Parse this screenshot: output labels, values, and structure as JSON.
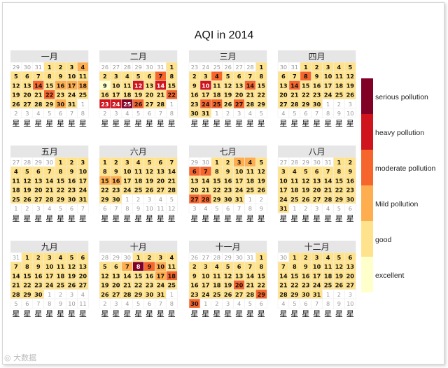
{
  "chart_data": {
    "type": "heatmap",
    "subtype": "calendar",
    "title": "AQI in 2014",
    "year": 2014,
    "month_labels": [
      "一月",
      "二月",
      "三月",
      "四月",
      "五月",
      "六月",
      "七月",
      "八月",
      "九月",
      "十月",
      "十一月",
      "十二月"
    ],
    "weekday_label": "星",
    "legend_position": "right",
    "legend_order_top_to_bottom": [
      "serious pollution",
      "heavy pollution",
      "moderate pollution",
      "Mild pollution",
      "good",
      "excellent"
    ],
    "levels": [
      {
        "level": 0,
        "label": "excellent",
        "color": "#FFFFCC"
      },
      {
        "level": 1,
        "label": "good",
        "color": "#FFE38C"
      },
      {
        "level": 2,
        "label": "Mild pollution",
        "color": "#FEAE4E"
      },
      {
        "level": 3,
        "label": "moderate pollution",
        "color": "#F5652C"
      },
      {
        "level": 4,
        "label": "heavy pollution",
        "color": "#D0141E"
      },
      {
        "level": 5,
        "label": "serious pollution",
        "color": "#800026"
      }
    ],
    "other_day_color": "#FFFFFF",
    "aqi_level_by_month": [
      [
        1,
        1,
        1,
        2,
        1,
        1,
        1,
        1,
        1,
        1,
        1,
        1,
        1,
        3,
        1,
        2,
        2,
        2,
        1,
        1,
        1,
        3,
        1,
        1,
        1,
        1,
        1,
        1,
        1,
        2,
        1
      ],
      [
        1,
        1,
        1,
        1,
        1,
        1,
        3,
        1,
        0,
        1,
        1,
        4,
        1,
        4,
        1,
        1,
        1,
        1,
        1,
        1,
        1,
        3,
        4,
        4,
        5,
        3,
        1,
        1
      ],
      [
        1,
        1,
        1,
        3,
        1,
        1,
        1,
        1,
        1,
        4,
        1,
        1,
        1,
        3,
        1,
        1,
        1,
        1,
        1,
        1,
        1,
        1,
        1,
        3,
        3,
        1,
        3,
        1,
        1,
        1,
        1
      ],
      [
        1,
        1,
        1,
        1,
        1,
        1,
        1,
        3,
        1,
        1,
        1,
        1,
        1,
        3,
        1,
        1,
        1,
        1,
        1,
        1,
        1,
        1,
        1,
        1,
        1,
        1,
        1,
        1,
        1,
        1
      ],
      [
        1,
        1,
        1,
        1,
        1,
        1,
        1,
        1,
        1,
        1,
        1,
        1,
        1,
        1,
        1,
        1,
        1,
        1,
        1,
        1,
        1,
        1,
        1,
        1,
        1,
        1,
        1,
        1,
        1,
        1,
        1
      ],
      [
        1,
        1,
        1,
        1,
        1,
        1,
        1,
        1,
        1,
        1,
        1,
        1,
        1,
        1,
        2,
        2,
        1,
        1,
        1,
        1,
        1,
        1,
        1,
        1,
        1,
        1,
        1,
        1,
        1,
        1
      ],
      [
        1,
        1,
        2,
        2,
        1,
        3,
        3,
        1,
        1,
        1,
        1,
        1,
        1,
        1,
        1,
        1,
        1,
        1,
        1,
        1,
        1,
        1,
        1,
        1,
        1,
        1,
        3,
        3,
        1,
        1,
        1
      ],
      [
        1,
        1,
        1,
        1,
        1,
        1,
        1,
        1,
        1,
        1,
        1,
        1,
        1,
        1,
        1,
        1,
        1,
        1,
        1,
        1,
        1,
        1,
        1,
        1,
        1,
        1,
        1,
        1,
        1,
        1,
        1
      ],
      [
        1,
        1,
        1,
        1,
        1,
        1,
        1,
        1,
        1,
        1,
        1,
        1,
        1,
        1,
        1,
        1,
        1,
        1,
        1,
        1,
        1,
        1,
        1,
        1,
        1,
        1,
        1,
        1,
        1,
        1
      ],
      [
        1,
        1,
        1,
        1,
        1,
        1,
        2,
        5,
        3,
        2,
        1,
        1,
        1,
        1,
        1,
        1,
        2,
        3,
        1,
        1,
        1,
        1,
        1,
        1,
        1,
        1,
        1,
        1,
        1,
        1,
        1
      ],
      [
        1,
        1,
        1,
        1,
        1,
        1,
        1,
        1,
        1,
        1,
        1,
        1,
        1,
        1,
        1,
        1,
        1,
        1,
        1,
        3,
        1,
        1,
        1,
        1,
        1,
        1,
        1,
        1,
        3,
        3
      ],
      [
        1,
        1,
        1,
        1,
        1,
        1,
        1,
        1,
        1,
        1,
        1,
        1,
        1,
        1,
        1,
        1,
        1,
        1,
        1,
        1,
        1,
        1,
        1,
        1,
        1,
        1,
        1,
        1,
        1,
        1,
        1
      ]
    ]
  }
}
